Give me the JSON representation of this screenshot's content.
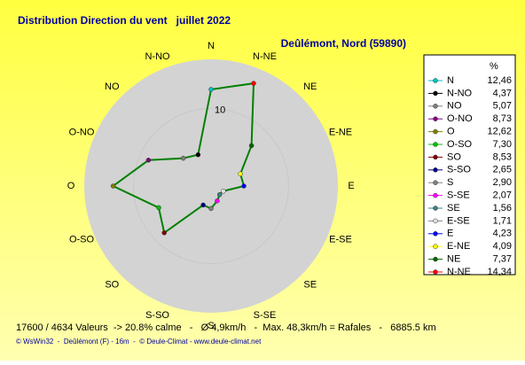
{
  "chart_data": {
    "type": "radar",
    "title": "Distribution Direction du vent   juillet 2022",
    "subtitle": "Deûlémont, Nord (59890)",
    "categories": [
      "N",
      "N-NO",
      "NO",
      "O-NO",
      "O",
      "O-SO",
      "SO",
      "S-SO",
      "S",
      "S-SE",
      "SE",
      "E-SE",
      "E",
      "E-NE",
      "NE",
      "N-NE"
    ],
    "values": [
      12.46,
      4.37,
      5.07,
      8.73,
      12.62,
      7.3,
      8.53,
      2.65,
      2.9,
      2.07,
      1.56,
      1.71,
      4.23,
      4.09,
      7.37,
      14.34
    ],
    "value_labels": [
      "12,46",
      "4,37",
      "5,07",
      "8,73",
      "12,62",
      "7,30",
      "8,53",
      "2,65",
      "2,90",
      "2,07",
      "1,56",
      "1,71",
      "4,23",
      "4,09",
      "7,37",
      "14,34"
    ],
    "marker_colors": [
      "#00c0c0",
      "#000000",
      "#808080",
      "#800080",
      "#808000",
      "#00c000",
      "#800000",
      "#000080",
      "#808080",
      "#ff00ff",
      "#408080",
      "#e0e0e0",
      "#0000ff",
      "#ffff00",
      "#006400",
      "#ff0000"
    ],
    "color": "#008000",
    "direction": "counterclockwise",
    "rlim": [
      0,
      16
    ],
    "rticks": [
      10
    ],
    "legend_title": "%"
  },
  "footer": {
    "stats": "17600 / 4634 Valeurs  -> 20.8% calme   -   Ø 4,9km/h   -  Max. 48,3km/h = Rafales   -   6885.5 km",
    "credit": "© WsWin32  -  Deûlémont (F) - 16m  -  © Deule-Climat - www.deule-climat.net"
  }
}
